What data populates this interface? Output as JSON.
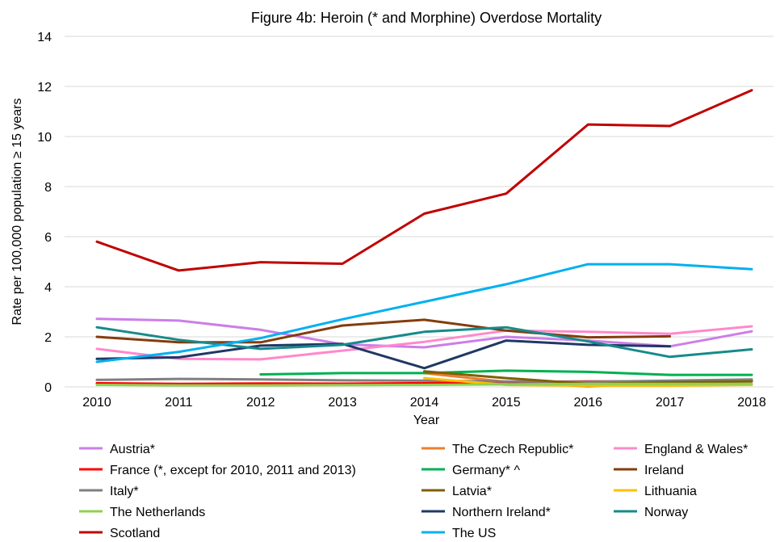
{
  "chart_data": {
    "type": "line",
    "title": "Figure 4b: Heroin (* and Morphine) Overdose Mortality",
    "xlabel": "Year",
    "ylabel": "Rate per 100,000 population ≥ 15 years",
    "x": [
      "2010",
      "2011",
      "2012",
      "2013",
      "2014",
      "2015",
      "2016",
      "2017",
      "2018"
    ],
    "ylim": [
      0,
      14
    ],
    "yticks": [
      "0",
      "2",
      "4",
      "6",
      "8",
      "10",
      "12",
      "14"
    ],
    "grid": "horizontal",
    "legend_position": "bottom",
    "series": [
      {
        "name": "Austria*",
        "color": "#cc7ee8",
        "values": [
          2.72,
          2.65,
          2.28,
          1.7,
          1.58,
          2.0,
          1.85,
          1.62,
          2.22
        ]
      },
      {
        "name": "The Czech Republic*",
        "color": "#ed7d31",
        "values": [
          null,
          null,
          null,
          null,
          0.55,
          0.2,
          0.02,
          0.2,
          0.25
        ]
      },
      {
        "name": "England & Wales*",
        "color": "#ff88cc",
        "values": [
          1.52,
          1.12,
          1.1,
          1.45,
          1.8,
          2.25,
          2.2,
          2.12,
          2.42
        ]
      },
      {
        "name": "France (*, except for 2010, 2011 and 2013)",
        "color": "#ff0000",
        "values": [
          0.15,
          0.12,
          0.14,
          0.13,
          0.15,
          0.2,
          0.22,
          0.22,
          0.25
        ]
      },
      {
        "name": "Germany* ^",
        "color": "#00b050",
        "values": [
          null,
          null,
          0.5,
          0.55,
          0.55,
          0.65,
          0.6,
          0.48,
          0.48
        ]
      },
      {
        "name": "Ireland",
        "color": "#843c0c",
        "values": [
          2.0,
          1.78,
          1.78,
          2.45,
          2.68,
          2.25,
          1.98,
          2.02,
          null
        ]
      },
      {
        "name": "Italy*",
        "color": "#7f7f7f",
        "values": [
          0.28,
          0.32,
          0.3,
          0.26,
          0.25,
          0.22,
          0.2,
          0.25,
          0.3
        ]
      },
      {
        "name": "Latvia*",
        "color": "#7f6000",
        "values": [
          null,
          null,
          null,
          null,
          0.62,
          0.35,
          0.12,
          0.18,
          0.22
        ]
      },
      {
        "name": "Lithuania",
        "color": "#ffc000",
        "values": [
          null,
          null,
          null,
          null,
          0.35,
          0.08,
          0.05,
          0.05,
          0.08
        ]
      },
      {
        "name": "The Netherlands",
        "color": "#92d050",
        "values": [
          0.08,
          0.06,
          0.06,
          0.07,
          0.08,
          0.1,
          0.12,
          0.12,
          0.12
        ]
      },
      {
        "name": "Northern Ireland*",
        "color": "#1f3864",
        "values": [
          1.12,
          1.18,
          1.65,
          1.72,
          0.75,
          1.85,
          1.68,
          1.62,
          null
        ]
      },
      {
        "name": "Norway",
        "color": "#178a8a",
        "values": [
          2.38,
          1.88,
          1.52,
          1.68,
          2.2,
          2.38,
          1.82,
          1.2,
          1.5
        ]
      },
      {
        "name": "Scotland",
        "color": "#c00000",
        "values": [
          5.8,
          4.65,
          4.98,
          4.92,
          6.92,
          7.72,
          10.48,
          10.42,
          11.85
        ]
      },
      {
        "name": "The US",
        "color": "#00b0f0",
        "values": [
          1.0,
          1.4,
          1.95,
          2.7,
          3.4,
          4.1,
          4.9,
          4.9,
          4.7
        ]
      }
    ]
  }
}
